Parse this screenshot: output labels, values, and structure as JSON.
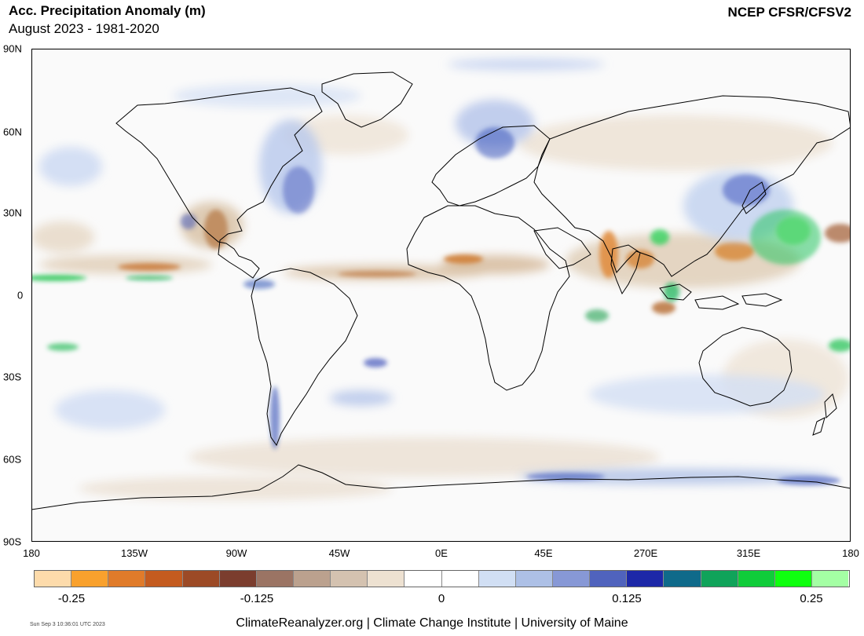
{
  "header": {
    "title": "Acc. Precipitation Anomaly (m)",
    "subtitle": "August 2023 - 1981-2020",
    "source": "NCEP CFSR/CFSV2"
  },
  "axes": {
    "lat_labels": [
      "90N",
      "60N",
      "30N",
      "0",
      "30S",
      "60S",
      "90S"
    ],
    "lon_labels": [
      "180",
      "135W",
      "90W",
      "45W",
      "0E",
      "45E",
      "270E",
      "315E",
      "180"
    ]
  },
  "colorbar": {
    "colors": [
      "#fddbab",
      "#f9a12d",
      "#e07b2a",
      "#c45b1f",
      "#9c4a26",
      "#7b3d2e",
      "#9b7464",
      "#bba18e",
      "#d4c2b0",
      "#ede1d1",
      "#ffffff",
      "#ffffff",
      "#d1dff4",
      "#adc0e6",
      "#8798d6",
      "#5063bd",
      "#1d28a8",
      "#0f6a8a",
      "#10a35a",
      "#10cc3a",
      "#0fff0f",
      "#a4ffa4"
    ],
    "tick_labels": [
      "-0.25",
      "-0.125",
      "0",
      "0.125",
      "0.25"
    ]
  },
  "footer": {
    "stamp": "Sun Sep  3 10:36:01 UTC 2023",
    "credit": "ClimateReanalyzer.org | Climate Change Institute | University of Maine"
  }
}
